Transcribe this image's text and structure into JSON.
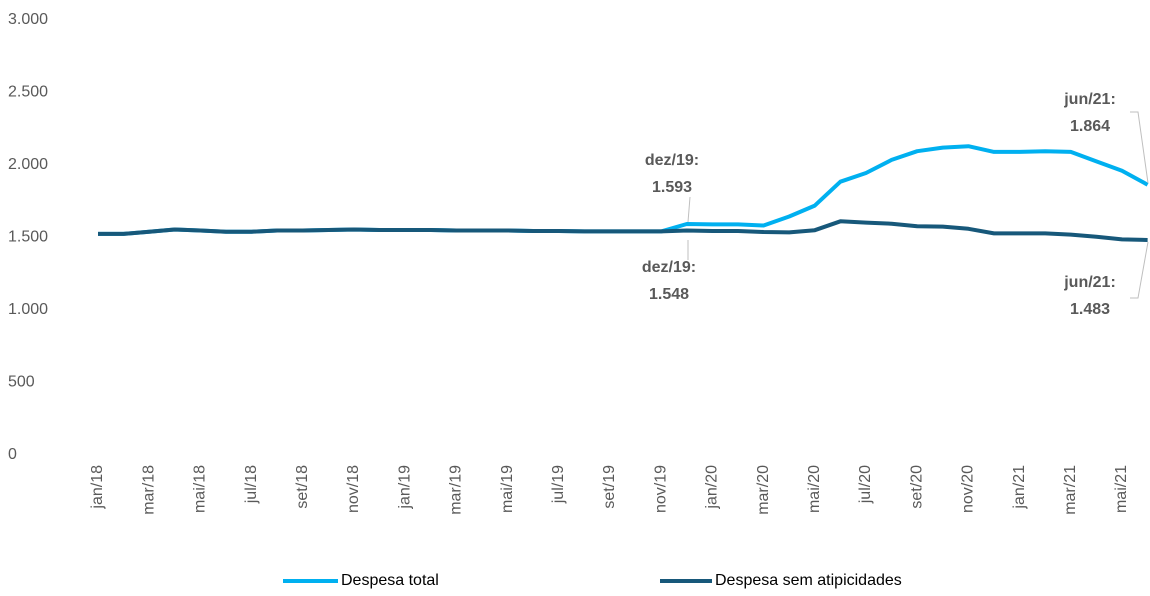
{
  "chart_data": {
    "type": "line",
    "categories": [
      "jan/18",
      null,
      "mar/18",
      null,
      "mai/18",
      null,
      "jul/18",
      null,
      "set/18",
      null,
      "nov/18",
      null,
      "jan/19",
      null,
      "mar/19",
      null,
      "mai/19",
      null,
      "jul/19",
      null,
      "set/19",
      null,
      "nov/19",
      null,
      "jan/20",
      null,
      "mar/20",
      null,
      "mai/20",
      null,
      "jul/20",
      null,
      "set/20",
      null,
      "nov/20",
      null,
      "jan/21",
      null,
      "mar/21",
      null,
      "mai/21",
      null
    ],
    "series": [
      {
        "name": "Despesa total",
        "color": "#00b0f0",
        "values": [
          1525,
          1525,
          1540,
          1555,
          1548,
          1540,
          1540,
          1548,
          1548,
          1552,
          1555,
          1552,
          1552,
          1552,
          1548,
          1548,
          1548,
          1545,
          1545,
          1542,
          1542,
          1542,
          1542,
          1593,
          1590,
          1590,
          1583,
          1645,
          1720,
          1885,
          1945,
          2035,
          2095,
          2120,
          2130,
          2090,
          2090,
          2095,
          2090,
          2025,
          1960,
          1864
        ]
      },
      {
        "name": "Despesa sem atipicidades",
        "color": "#17587a",
        "values": [
          1525,
          1525,
          1540,
          1555,
          1548,
          1540,
          1540,
          1548,
          1548,
          1552,
          1555,
          1552,
          1552,
          1552,
          1548,
          1548,
          1548,
          1545,
          1545,
          1542,
          1542,
          1542,
          1542,
          1548,
          1545,
          1545,
          1538,
          1535,
          1550,
          1612,
          1603,
          1595,
          1578,
          1575,
          1560,
          1528,
          1528,
          1528,
          1520,
          1505,
          1487,
          1483
        ]
      }
    ],
    "ylim": [
      0,
      3000
    ],
    "yticks": [
      0,
      500,
      {
        "value": 1000,
        "label": "1.000"
      },
      {
        "value": 1500,
        "label": "1.500"
      },
      {
        "value": 2000,
        "label": "2.000"
      },
      {
        "value": 2500,
        "label": "2.500"
      },
      {
        "value": 3000,
        "label": "3.000"
      }
    ],
    "grid": false,
    "legend": "bottom",
    "annotations": [
      {
        "date": "dez/19:",
        "value_label": "1.593"
      },
      {
        "date": "dez/19:",
        "value_label": "1.548"
      },
      {
        "date": "jun/21:",
        "value_label": "1.864"
      },
      {
        "date": "jun/21:",
        "value_label": "1.483"
      }
    ]
  }
}
